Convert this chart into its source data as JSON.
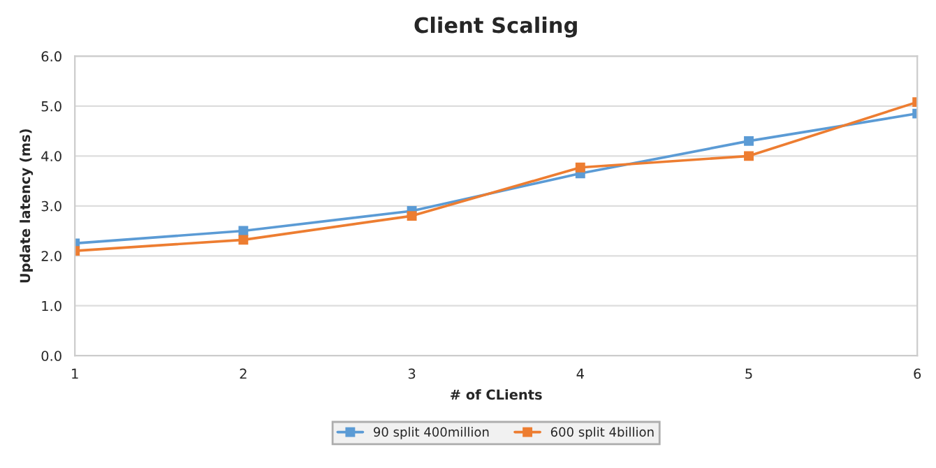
{
  "chart_data": {
    "type": "line",
    "title": "Client Scaling",
    "xlabel": "# of CLients",
    "ylabel": "Update latency (ms)",
    "x": [
      1,
      2,
      3,
      4,
      5,
      6
    ],
    "series": [
      {
        "name": "90 split 400million",
        "color": "#5b9bd5",
        "values": [
          2.25,
          2.5,
          2.9,
          3.65,
          4.3,
          4.85
        ]
      },
      {
        "name": "600 split 4billion",
        "color": "#ed7d31",
        "values": [
          2.1,
          2.32,
          2.8,
          3.77,
          4.0,
          5.08
        ]
      }
    ],
    "xlim": [
      1,
      6
    ],
    "xticks": [
      1,
      2,
      3,
      4,
      5,
      6
    ],
    "ylim": [
      0,
      6
    ],
    "yticks": [
      {
        "value": 0,
        "label": "0.0"
      },
      {
        "value": 1,
        "label": "1.0"
      },
      {
        "value": 2,
        "label": "2.0"
      },
      {
        "value": 3,
        "label": "3.0"
      },
      {
        "value": 4,
        "label": "4.0"
      },
      {
        "value": 5,
        "label": "5.0"
      },
      {
        "value": 6,
        "label": "6.0"
      }
    ],
    "grid": "y",
    "legend": "bottom",
    "marker": "square",
    "line_style": "solid"
  }
}
